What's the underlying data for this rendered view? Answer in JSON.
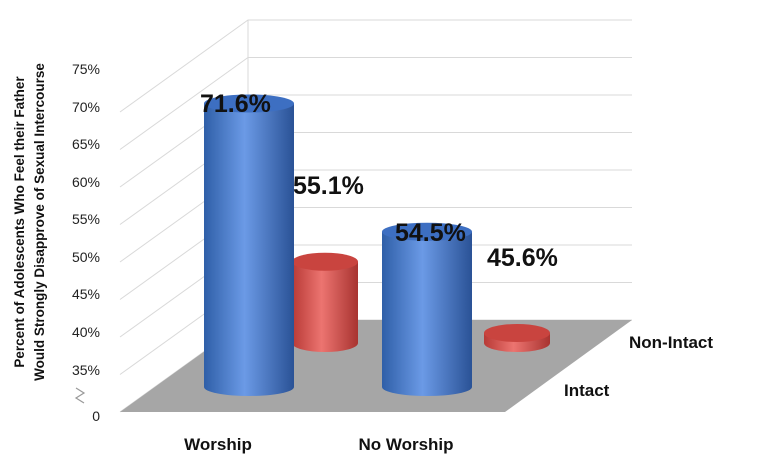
{
  "chart_data": {
    "type": "bar",
    "categories": [
      "Worship",
      "No Worship"
    ],
    "series": [
      {
        "name": "Intact",
        "values": [
          71.6,
          54.5
        ],
        "labels": [
          "71.6%",
          "54.5%"
        ],
        "color": "#4a7fd4"
      },
      {
        "name": "Non-Intact",
        "values": [
          55.1,
          45.6
        ],
        "labels": [
          "55.1%",
          "45.6%"
        ],
        "color": "#d9534f"
      }
    ],
    "ylabel_lines": [
      "Percent of Adolescents Who Feel their Father",
      "Would Strongly Disapprove of Sexual Intercourse"
    ],
    "yticks": [
      "75%",
      "70%",
      "65%",
      "60%",
      "55%",
      "50%",
      "45%",
      "40%",
      "35%",
      "0"
    ],
    "ylim": [
      35,
      75
    ],
    "axis_break": true,
    "grid": true,
    "floor_color": "#a6a6a6"
  }
}
